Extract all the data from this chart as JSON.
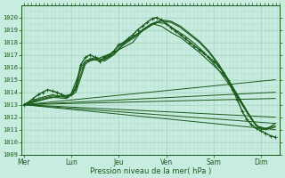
{
  "background_color": "#c8ece0",
  "grid_color": "#a8d4c0",
  "line_color": "#1a5c1a",
  "xlabel": "Pression niveau de la mer( hPa )",
  "ylim": [
    1009,
    1021
  ],
  "yticks": [
    1009,
    1010,
    1011,
    1012,
    1013,
    1014,
    1015,
    1016,
    1017,
    1018,
    1019,
    1020
  ],
  "xtick_labels": [
    "Mer",
    "Lun",
    "Jeu",
    "Ven",
    "Sam",
    "Dim"
  ],
  "xtick_positions": [
    0,
    1,
    2,
    3,
    4,
    5
  ],
  "xlim": [
    -0.05,
    5.4
  ],
  "main_x": [
    0.0,
    0.1,
    0.2,
    0.3,
    0.4,
    0.5,
    0.6,
    0.7,
    0.8,
    0.9,
    1.0,
    1.1,
    1.2,
    1.3,
    1.4,
    1.5,
    1.6,
    1.7,
    1.8,
    1.9,
    2.0,
    2.1,
    2.2,
    2.3,
    2.4,
    2.5,
    2.6,
    2.7,
    2.8,
    2.9,
    3.0,
    3.1,
    3.2,
    3.3,
    3.4,
    3.5,
    3.6,
    3.7,
    3.8,
    3.9,
    4.0,
    4.1,
    4.2,
    4.3,
    4.4,
    4.5,
    4.6,
    4.7,
    4.8,
    4.9,
    5.0,
    5.1,
    5.2,
    5.3
  ],
  "main_y": [
    1013.0,
    1013.2,
    1013.5,
    1013.8,
    1014.0,
    1014.2,
    1014.1,
    1014.0,
    1013.8,
    1013.7,
    1013.8,
    1014.5,
    1016.2,
    1016.8,
    1017.0,
    1016.8,
    1016.5,
    1016.8,
    1017.0,
    1017.3,
    1017.8,
    1018.0,
    1018.3,
    1018.6,
    1019.0,
    1019.3,
    1019.6,
    1019.9,
    1020.0,
    1019.8,
    1019.5,
    1019.2,
    1018.9,
    1018.6,
    1018.3,
    1018.0,
    1017.7,
    1017.4,
    1017.1,
    1016.8,
    1016.5,
    1016.1,
    1015.6,
    1015.0,
    1014.2,
    1013.4,
    1012.5,
    1011.8,
    1011.4,
    1011.1,
    1010.9,
    1010.7,
    1010.5,
    1010.4
  ],
  "fan_lines": [
    {
      "x": [
        0.0,
        5.3
      ],
      "y": [
        1013.0,
        1012.0
      ]
    },
    {
      "x": [
        0.0,
        5.3
      ],
      "y": [
        1013.0,
        1011.5
      ]
    },
    {
      "x": [
        0.0,
        5.3
      ],
      "y": [
        1013.0,
        1011.0
      ]
    },
    {
      "x": [
        0.0,
        5.3
      ],
      "y": [
        1013.0,
        1015.0
      ]
    },
    {
      "x": [
        0.0,
        5.3
      ],
      "y": [
        1013.0,
        1014.0
      ]
    },
    {
      "x": [
        0.0,
        5.3
      ],
      "y": [
        1013.0,
        1013.5
      ]
    }
  ],
  "ensemble_lines": [
    {
      "x": [
        0.0,
        0.3,
        0.6,
        0.9,
        1.0,
        1.1,
        1.2,
        1.3,
        1.5,
        1.7,
        1.9,
        2.1,
        2.3,
        2.5,
        2.7,
        2.9,
        3.1,
        3.3,
        3.5,
        3.7,
        3.9,
        4.1,
        4.3,
        4.5,
        4.7,
        4.9,
        5.1,
        5.3
      ],
      "y": [
        1013.0,
        1013.5,
        1013.8,
        1013.6,
        1013.8,
        1014.2,
        1016.0,
        1016.5,
        1016.6,
        1016.9,
        1017.2,
        1017.6,
        1018.0,
        1019.0,
        1019.5,
        1019.3,
        1018.8,
        1018.4,
        1017.8,
        1017.2,
        1016.5,
        1015.8,
        1015.0,
        1013.8,
        1012.5,
        1011.3,
        1011.0,
        1011.5
      ]
    },
    {
      "x": [
        0.0,
        0.3,
        0.6,
        0.9,
        1.0,
        1.2,
        1.4,
        1.6,
        1.8,
        2.0,
        2.2,
        2.4,
        2.6,
        2.8,
        3.0,
        3.2,
        3.4,
        3.6,
        3.8,
        4.0,
        4.2,
        4.4,
        4.6,
        4.8,
        5.0,
        5.2
      ],
      "y": [
        1013.0,
        1013.4,
        1013.7,
        1013.6,
        1013.9,
        1015.8,
        1016.7,
        1016.5,
        1016.9,
        1017.7,
        1018.2,
        1018.7,
        1019.2,
        1019.6,
        1019.5,
        1019.0,
        1018.5,
        1017.9,
        1017.2,
        1016.3,
        1015.3,
        1014.2,
        1013.0,
        1011.8,
        1011.0,
        1011.2
      ]
    },
    {
      "x": [
        0.0,
        0.3,
        0.6,
        0.9,
        1.1,
        1.3,
        1.5,
        1.7,
        1.9,
        2.1,
        2.3,
        2.5,
        2.7,
        2.9,
        3.1,
        3.3,
        3.5,
        3.7,
        3.9,
        4.1,
        4.3,
        4.5,
        4.7,
        4.9,
        5.1,
        5.3
      ],
      "y": [
        1013.0,
        1013.3,
        1013.6,
        1013.5,
        1014.0,
        1016.3,
        1016.7,
        1016.5,
        1017.0,
        1017.8,
        1018.3,
        1018.9,
        1019.4,
        1019.7,
        1019.6,
        1019.2,
        1018.6,
        1018.0,
        1017.2,
        1016.2,
        1015.0,
        1013.7,
        1012.4,
        1011.3,
        1011.1,
        1011.3
      ]
    },
    {
      "x": [
        0.0,
        0.5,
        1.0,
        1.1,
        1.3,
        1.5,
        1.7,
        1.9,
        2.1,
        2.3,
        2.5,
        2.7,
        2.9,
        3.1,
        3.3,
        3.5,
        3.7,
        3.9,
        4.1,
        4.3,
        4.5,
        4.7,
        4.9,
        5.1,
        5.3
      ],
      "y": [
        1013.0,
        1013.5,
        1013.8,
        1014.3,
        1016.5,
        1016.8,
        1016.6,
        1017.1,
        1017.9,
        1018.4,
        1019.0,
        1019.5,
        1019.8,
        1019.7,
        1019.3,
        1018.7,
        1018.1,
        1017.3,
        1016.3,
        1015.1,
        1013.8,
        1012.5,
        1011.3,
        1011.0,
        1011.2
      ]
    }
  ]
}
